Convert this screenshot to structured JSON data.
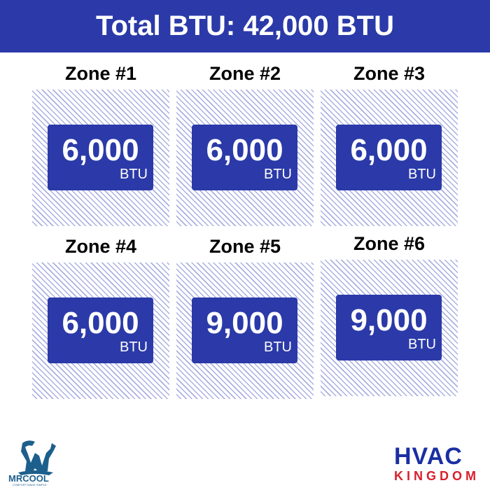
{
  "header": {
    "title": "Total BTU: 42,000 BTU"
  },
  "zones": [
    {
      "label": "Zone #1",
      "value": "6,000",
      "unit": "BTU"
    },
    {
      "label": "Zone #2",
      "value": "6,000",
      "unit": "BTU"
    },
    {
      "label": "Zone #3",
      "value": "6,000",
      "unit": "BTU"
    },
    {
      "label": "Zone #4",
      "value": "6,000",
      "unit": "BTU"
    },
    {
      "label": "Zone #5",
      "value": "9,000",
      "unit": "BTU"
    },
    {
      "label": "Zone #6",
      "value": "9,000",
      "unit": "BTU"
    }
  ],
  "logos": {
    "left": {
      "name": "MRCOOL",
      "tagline": "COMFORT MADE SIMPLE"
    },
    "right": {
      "line1": "HVAC",
      "line2": "KINGDOM"
    }
  },
  "colors": {
    "brand_blue": "#2b3aa8",
    "hatch": "#a9b0e0",
    "kingdom_red": "#d8202c"
  }
}
